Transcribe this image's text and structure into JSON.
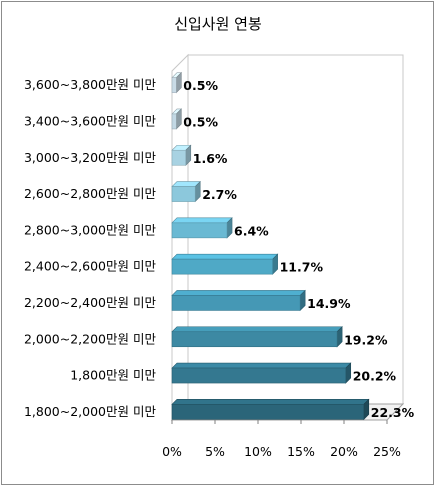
{
  "chart_data": {
    "type": "bar",
    "orientation": "horizontal",
    "title": "신입사원 연봉",
    "categories": [
      "3,600~3,800만원  미만",
      "3,400~3,600만원  미만",
      "3,000~3,200만원  미만",
      "2,600~2,800만원  미만",
      "2,800~3,000만원  미만",
      "2,400~2,600만원  미만",
      "2,200~2,400만원  미만",
      "2,000~2,200만원  미만",
      "1,800만원  미만",
      "1,800~2,000만원  미만"
    ],
    "values": [
      0.5,
      0.5,
      1.6,
      2.7,
      6.4,
      11.7,
      14.9,
      19.2,
      20.2,
      22.3
    ],
    "data_labels": [
      "0.5%",
      "0.5%",
      "1.6%",
      "2.7%",
      "6.4%",
      "11.7%",
      "14.9%",
      "19.2%",
      "20.2%",
      "22.3%"
    ],
    "bar_colors": [
      "#c9dbe6",
      "#c2d8e4",
      "#a8d2e2",
      "#8cc8dc",
      "#6ab9d3",
      "#4fa9c6",
      "#4598b5",
      "#3d89a3",
      "#347890",
      "#2b6579"
    ],
    "xticks": [
      "0%",
      "5%",
      "10%",
      "15%",
      "20%",
      "25%"
    ],
    "xlim": [
      0,
      25
    ],
    "grid": false,
    "legend": "none",
    "style": "3d"
  }
}
